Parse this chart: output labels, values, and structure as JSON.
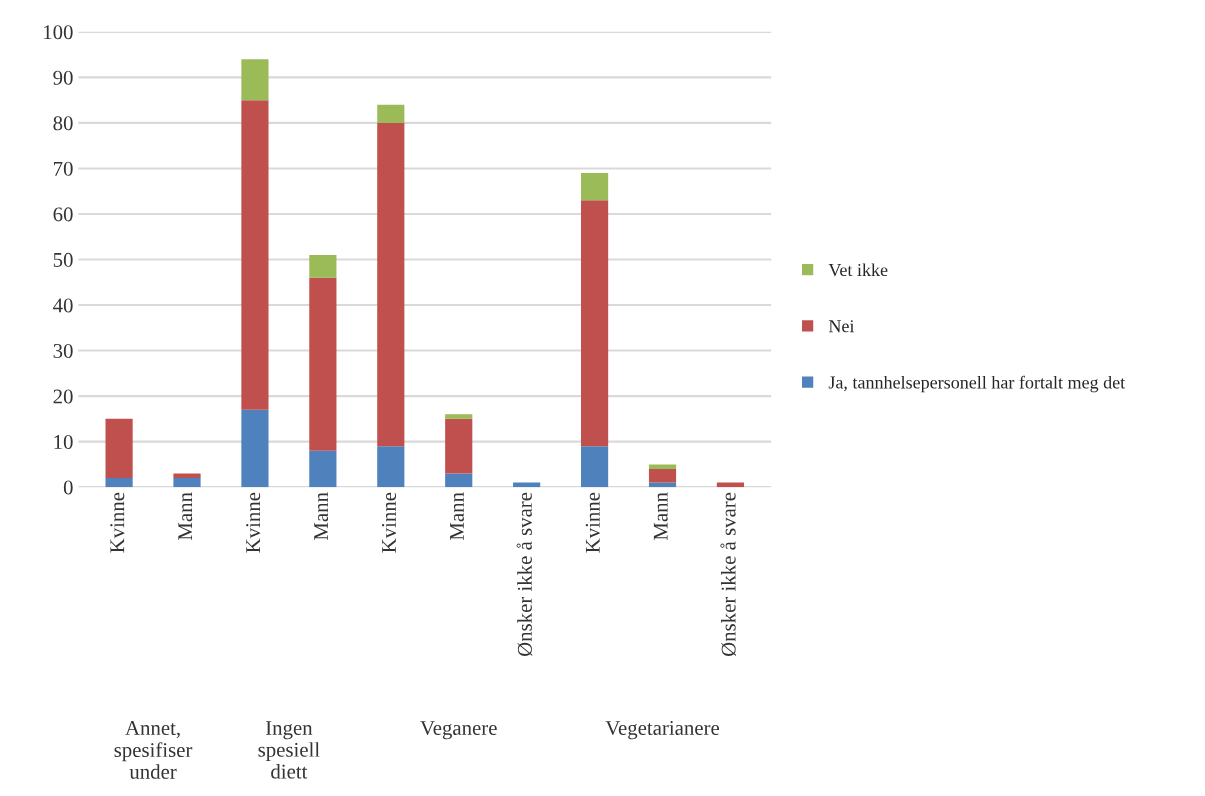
{
  "chart_data": {
    "type": "bar",
    "stacked": true,
    "categories": [
      "Kvinne",
      "Mann",
      "Kvinne",
      "Mann",
      "Kvinne",
      "Mann",
      "Ønsker ikke å svare",
      "Kvinne",
      "Mann",
      "Ønsker ikke å svare"
    ],
    "series": [
      {
        "name": "Ja, tannhelsepersonell har fortalt meg det",
        "color": "#4f81bd",
        "values": [
          2,
          2,
          17,
          8,
          9,
          3,
          1,
          9,
          1,
          0
        ]
      },
      {
        "name": "Nei",
        "color": "#c0504d",
        "values": [
          13,
          1,
          68,
          38,
          71,
          12,
          0,
          54,
          3,
          1
        ]
      },
      {
        "name": "Vet ikke",
        "color": "#9bbb59",
        "values": [
          0,
          0,
          9,
          5,
          4,
          1,
          0,
          6,
          1,
          0
        ]
      }
    ],
    "ylim": [
      0,
      100
    ],
    "yticks": [
      0,
      10,
      20,
      30,
      40,
      50,
      60,
      70,
      80,
      90,
      100
    ],
    "grid": "y",
    "legend": "right",
    "annotations": [
      "Annet,\nspesifiser\nunder",
      "Ingen\nspesiell\ndiett",
      "Veganere",
      "Vegetarianere"
    ]
  }
}
